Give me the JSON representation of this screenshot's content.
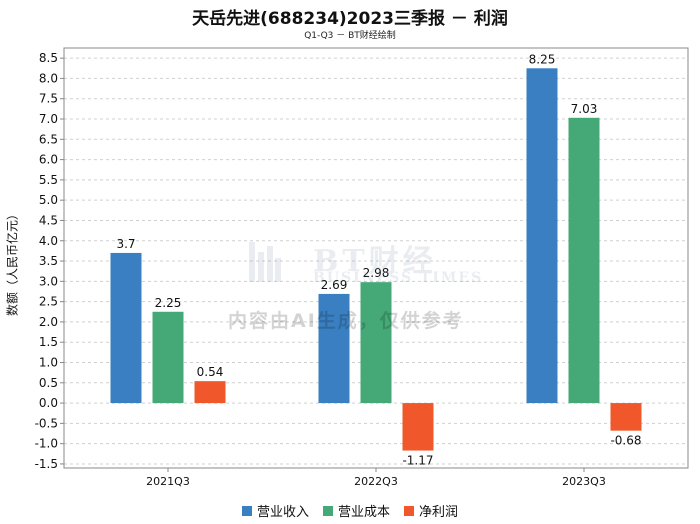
{
  "chart_data": {
    "type": "bar",
    "title": "天岳先进(688234)2023三季报 － 利润",
    "subtitle": "Q1-Q3 － BT财经绘制",
    "ylabel": "数额（人民币亿元）",
    "xlabel": "",
    "categories": [
      "2021Q3",
      "2022Q3",
      "2023Q3"
    ],
    "ylim": [
      -1.6,
      8.75
    ],
    "yticks": [
      -1.5,
      -1.0,
      -0.5,
      0.0,
      0.5,
      1.0,
      1.5,
      2.0,
      2.5,
      3.0,
      3.5,
      4.0,
      4.5,
      5.0,
      5.5,
      6.0,
      6.5,
      7.0,
      7.5,
      8.0,
      8.5
    ],
    "ytick_labels": [
      "-1.5",
      "-1.0",
      "-0.5",
      "0.0",
      "0.5",
      "1.0",
      "1.5",
      "2.0",
      "2.5",
      "3.0",
      "3.5",
      "4.0",
      "4.5",
      "5.0",
      "5.5",
      "6.0",
      "6.5",
      "7.0",
      "7.5",
      "8.0",
      "8.5"
    ],
    "grid": true,
    "legend_position": "bottom",
    "series": [
      {
        "name": "营业收入",
        "color": "#3a7fc1",
        "values": [
          3.7,
          2.69,
          8.25
        ],
        "labels": [
          "3.7",
          "2.69",
          "8.25"
        ]
      },
      {
        "name": "营业成本",
        "color": "#45a877",
        "values": [
          2.25,
          2.98,
          7.03
        ],
        "labels": [
          "2.25",
          "2.98",
          "7.03"
        ]
      },
      {
        "name": "净利润",
        "color": "#f0572a",
        "values": [
          0.54,
          -1.17,
          -0.68
        ],
        "labels": [
          "0.54",
          "-1.17",
          "-0.68"
        ]
      }
    ]
  },
  "watermark": {
    "logo_text": "BT财经",
    "logo_subtext": "BUSINESS TIMES",
    "note": "内容由AI生成，仅供参考"
  }
}
